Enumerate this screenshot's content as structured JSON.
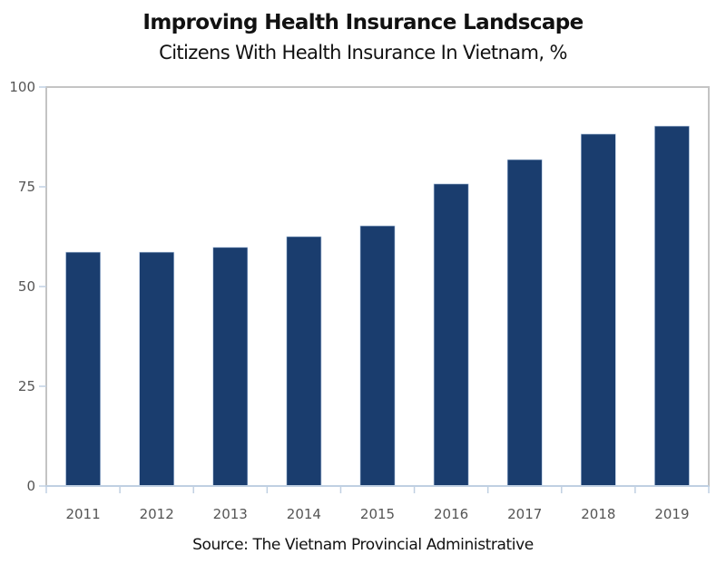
{
  "chart_data": {
    "type": "bar",
    "title": "Improving Health Insurance Landscape",
    "subtitle": "Citizens With Health Insurance In Vietnam, %",
    "source": "Source: The Vietnam Provincial Administrative",
    "xlabel": "",
    "ylabel": "",
    "categories": [
      "2011",
      "2012",
      "2013",
      "2014",
      "2015",
      "2016",
      "2017",
      "2018",
      "2019"
    ],
    "values": [
      58.6,
      58.6,
      59.8,
      62.5,
      65.2,
      75.7,
      81.8,
      88.2,
      90.2
    ],
    "ylim": [
      0,
      100
    ],
    "yticks": [
      "0",
      "25",
      "50",
      "75",
      "100"
    ],
    "grid": false,
    "legend": "none",
    "colors": {
      "bar": "#1a3d6e",
      "frame": "#c4c4c4",
      "tick": "#c0d0e2"
    }
  }
}
